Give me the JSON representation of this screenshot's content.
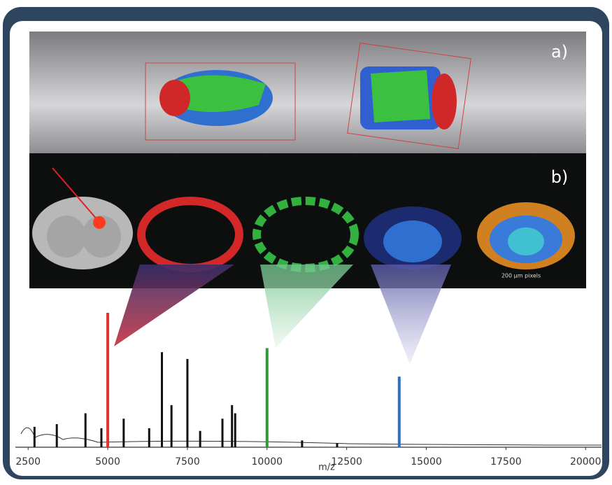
{
  "panels": {
    "a": "a)",
    "b": "b)",
    "scale_note": "200 µm pixels"
  },
  "chart_data": {
    "type": "spectrum",
    "x_label": "m/z",
    "xlim": [
      2100,
      20500
    ],
    "xticks": [
      2500,
      5000,
      7500,
      10000,
      12500,
      15000,
      17500,
      20000
    ],
    "ylim": [
      0,
      100
    ],
    "series": [
      {
        "color": "#111111",
        "x": [
          2700,
          3400,
          4300,
          4800,
          5500,
          6300,
          6700,
          7000,
          7500,
          7900,
          8600,
          8900,
          9000,
          11100,
          12200
        ],
        "values": [
          15,
          17,
          25,
          14,
          21,
          14,
          70,
          31,
          65,
          12,
          21,
          31,
          25,
          5,
          3
        ]
      },
      {
        "color": "#e0332b",
        "x": [
          5000
        ],
        "values": [
          99
        ]
      },
      {
        "color": "#2e9a3a",
        "x": [
          10000
        ],
        "values": [
          73
        ]
      },
      {
        "color": "#2f6fc0",
        "x": [
          14150
        ],
        "values": [
          52
        ]
      }
    ]
  }
}
